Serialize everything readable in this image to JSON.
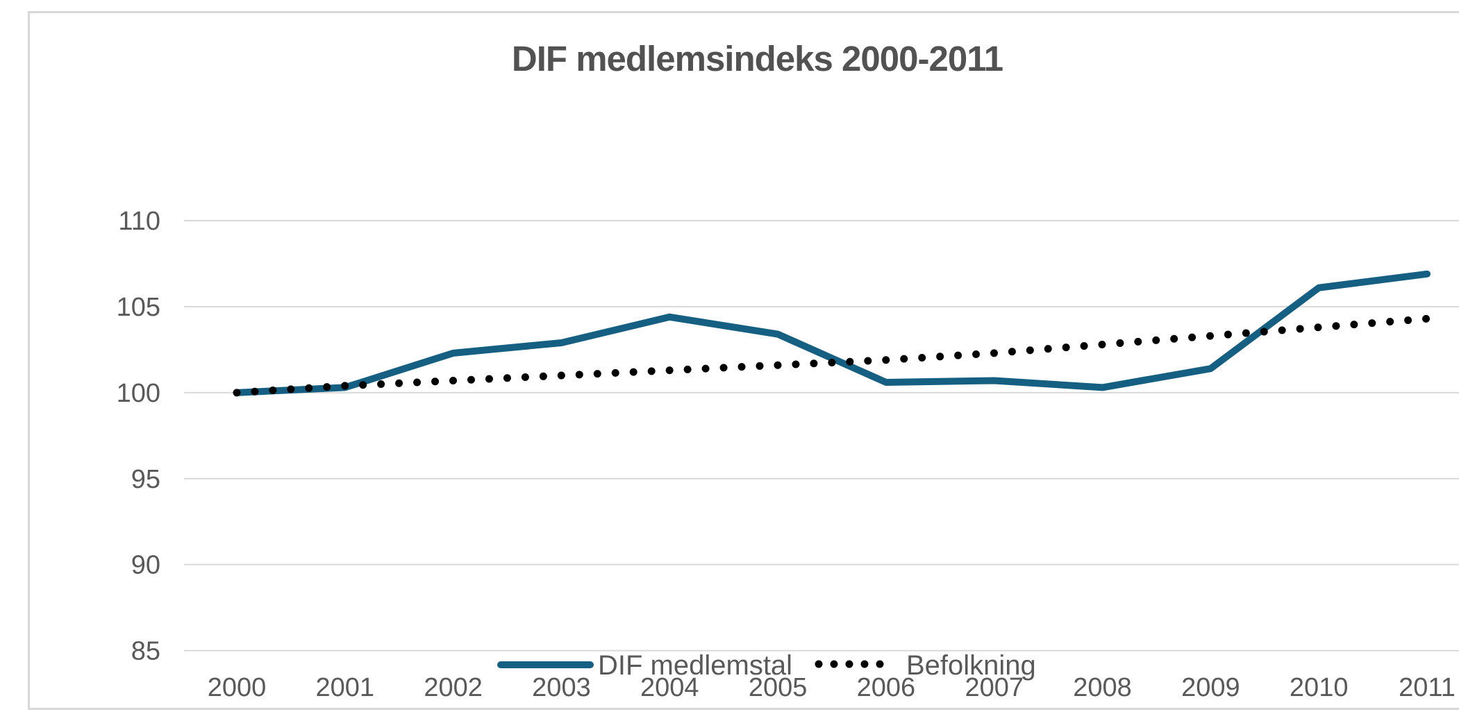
{
  "window": {
    "background": "#ffffff",
    "border_color": "#d8d8d8"
  },
  "chart_data": {
    "type": "line",
    "title": "DIF medlemsindeks 2000-2011",
    "categories": [
      "2000",
      "2001",
      "2002",
      "2003",
      "2004",
      "2005",
      "2006",
      "2007",
      "2008",
      "2009",
      "2010",
      "2011"
    ],
    "series": [
      {
        "name": "DIF medlemstal",
        "style": "solid",
        "color": "#156082",
        "values": [
          100,
          100.3,
          102.3,
          102.9,
          104.4,
          103.4,
          100.6,
          100.7,
          100.3,
          101.4,
          106.1,
          106.9
        ]
      },
      {
        "name": "Befolkning",
        "style": "dotted",
        "color": "#000000",
        "values": [
          100,
          100.4,
          100.7,
          101.0,
          101.3,
          101.6,
          101.9,
          102.3,
          102.8,
          103.3,
          103.8,
          104.3
        ]
      }
    ],
    "xlabel": "",
    "ylabel": "",
    "ylim": [
      85,
      110
    ],
    "yticks": [
      85,
      90,
      95,
      100,
      105,
      110
    ],
    "grid": "horizontal",
    "gridline_color": "#d9d9d9",
    "axis_text_color": "#595959",
    "title_color": "#525252",
    "legend_position": "bottom-center"
  }
}
